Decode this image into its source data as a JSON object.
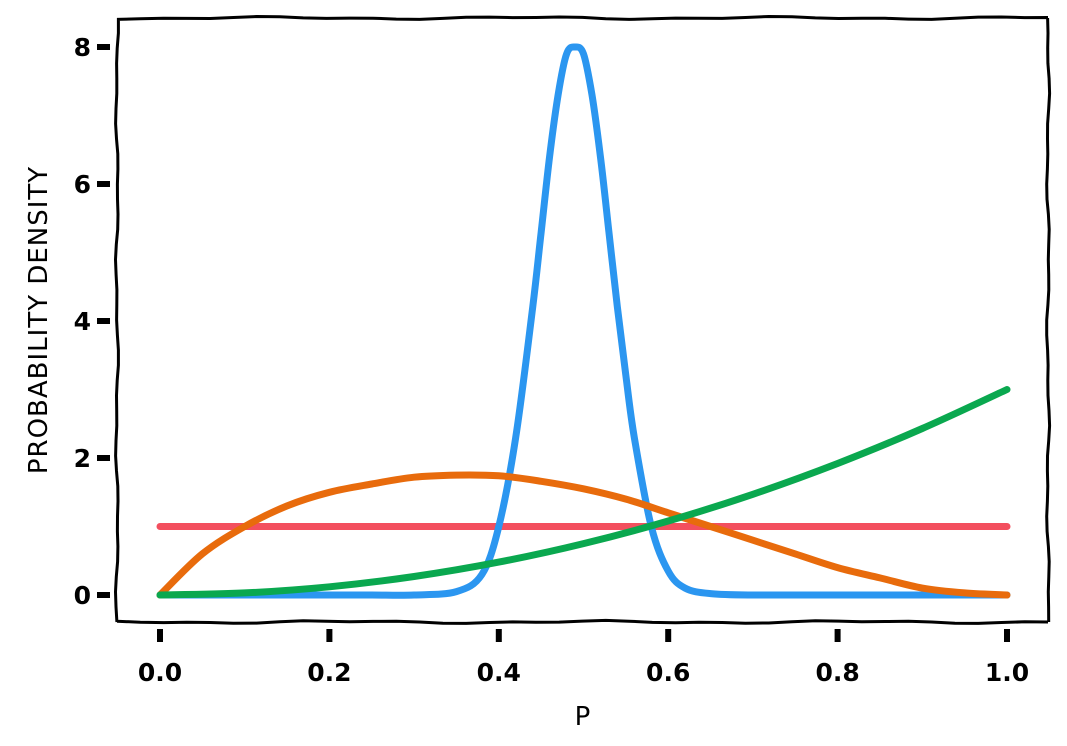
{
  "chart_data": {
    "type": "line",
    "title": "",
    "xlabel": "P",
    "ylabel": "PROBABILITY DENSITY",
    "xlim": [
      0,
      1
    ],
    "ylim": [
      -0.35,
      8.35
    ],
    "grid": false,
    "x_ticks": [
      0.0,
      0.2,
      0.4,
      0.6,
      0.8,
      1.0
    ],
    "x_tick_labels": [
      "0.0",
      "0.2",
      "0.4",
      "0.6",
      "0.8",
      "1.0"
    ],
    "y_ticks": [
      0,
      2,
      4,
      6,
      8
    ],
    "y_tick_labels": [
      "0",
      "2",
      "4",
      "6",
      "8"
    ],
    "series": [
      {
        "color": "#f34f5e",
        "x": [
          0.0,
          0.1,
          0.2,
          0.3,
          0.4,
          0.5,
          0.6,
          0.7,
          0.8,
          0.9,
          1.0
        ],
        "y": [
          1.0,
          1.0,
          1.0,
          1.0,
          1.0,
          1.0,
          1.0,
          1.0,
          1.0,
          1.0,
          1.0
        ]
      },
      {
        "color": "#2b96f0",
        "x": [
          0.0,
          0.05,
          0.1,
          0.15,
          0.2,
          0.25,
          0.3,
          0.35,
          0.38,
          0.4,
          0.42,
          0.44,
          0.45,
          0.46,
          0.47,
          0.48,
          0.49,
          0.5,
          0.51,
          0.52,
          0.53,
          0.54,
          0.55,
          0.56,
          0.58,
          0.6,
          0.62,
          0.65,
          0.7,
          0.8,
          0.9,
          1.0
        ],
        "y": [
          0.0,
          0.0,
          0.0,
          0.0,
          0.0,
          0.0,
          0.0,
          0.05,
          0.3,
          1.0,
          2.3,
          4.2,
          5.3,
          6.4,
          7.3,
          7.9,
          8.0,
          7.9,
          7.3,
          6.4,
          5.3,
          4.2,
          3.2,
          2.3,
          1.0,
          0.35,
          0.1,
          0.02,
          0.0,
          0.0,
          0.0,
          0.0
        ]
      },
      {
        "color": "#e86b0c",
        "x": [
          0.0,
          0.05,
          0.1,
          0.15,
          0.2,
          0.25,
          0.3,
          0.35,
          0.4,
          0.45,
          0.5,
          0.55,
          0.6,
          0.65,
          0.7,
          0.75,
          0.8,
          0.85,
          0.9,
          0.95,
          1.0
        ],
        "y": [
          0.0,
          0.6,
          1.0,
          1.3,
          1.5,
          1.62,
          1.72,
          1.75,
          1.74,
          1.66,
          1.55,
          1.4,
          1.2,
          1.0,
          0.8,
          0.6,
          0.4,
          0.25,
          0.1,
          0.03,
          0.0
        ]
      },
      {
        "color": "#0aa84f",
        "x": [
          0.0,
          0.1,
          0.2,
          0.3,
          0.4,
          0.5,
          0.6,
          0.7,
          0.8,
          0.9,
          1.0
        ],
        "y": [
          0.0,
          0.03,
          0.12,
          0.27,
          0.48,
          0.75,
          1.08,
          1.47,
          1.92,
          2.43,
          3.0
        ]
      }
    ]
  }
}
